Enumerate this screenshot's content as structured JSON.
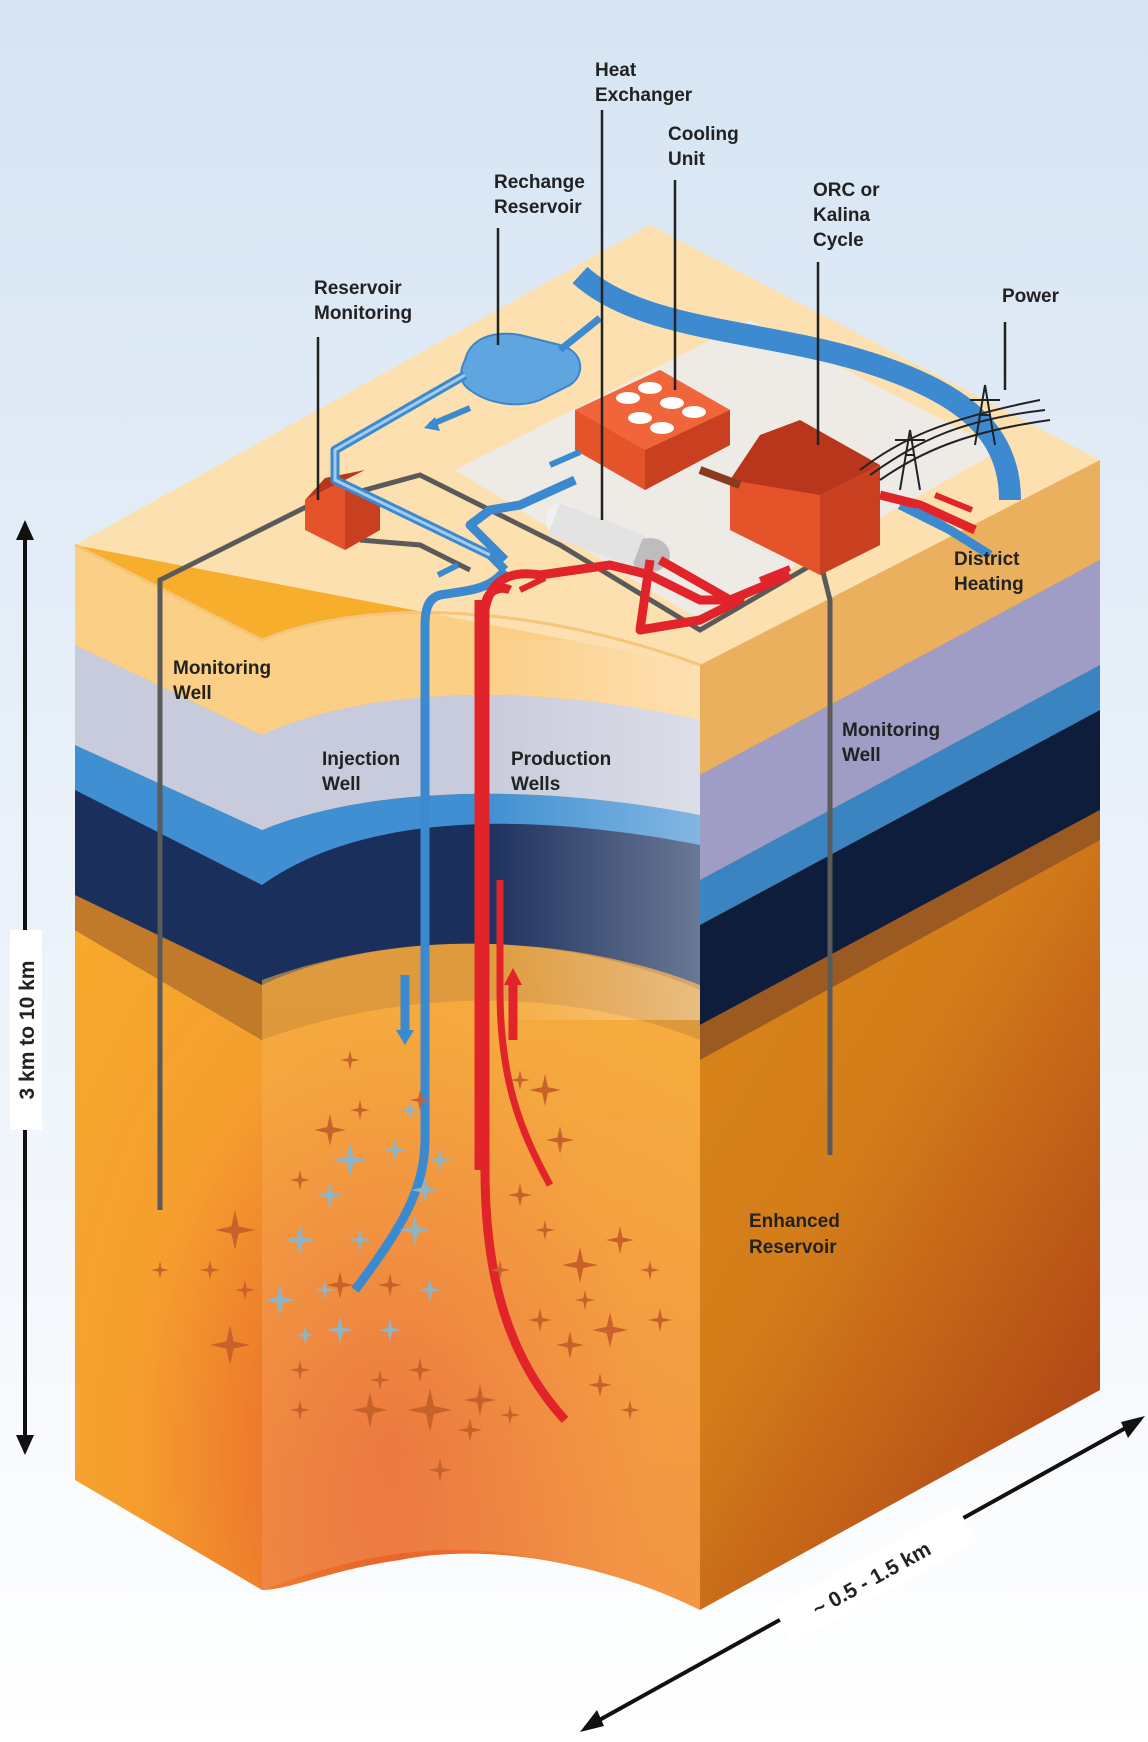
{
  "labels": {
    "heat_exchanger": [
      "Heat",
      "Exchanger"
    ],
    "cooling_unit": [
      "Cooling",
      "Unit"
    ],
    "recharge_reservoir": [
      "Rechange",
      "Reservoir"
    ],
    "orc_kalina": [
      "ORC or",
      "Kalina",
      "Cycle"
    ],
    "power": [
      "Power"
    ],
    "reservoir_monitoring": [
      "Reservoir",
      "Monitoring"
    ],
    "district_heating": [
      "District",
      "Heating"
    ],
    "monitoring_well_left": [
      "Monitoring",
      "Well"
    ],
    "injection_well": [
      "Injection",
      "Well"
    ],
    "production_wells": [
      "Production",
      "Wells"
    ],
    "monitoring_well_right": [
      "Monitoring",
      "Well"
    ],
    "enhanced_reservoir": [
      "Enhanced",
      "Reservoir"
    ]
  },
  "dimensions": {
    "depth": "3 km to 10 km",
    "width": "~ 0.5 - 1.5 km"
  },
  "colors": {
    "cold_water": "#3b8ad0",
    "hot_water": "#e0242a",
    "monitoring_line": "#555555",
    "building": "#e5532b",
    "surface": "#fde0b0",
    "deep_rock": "#f3a42b"
  }
}
